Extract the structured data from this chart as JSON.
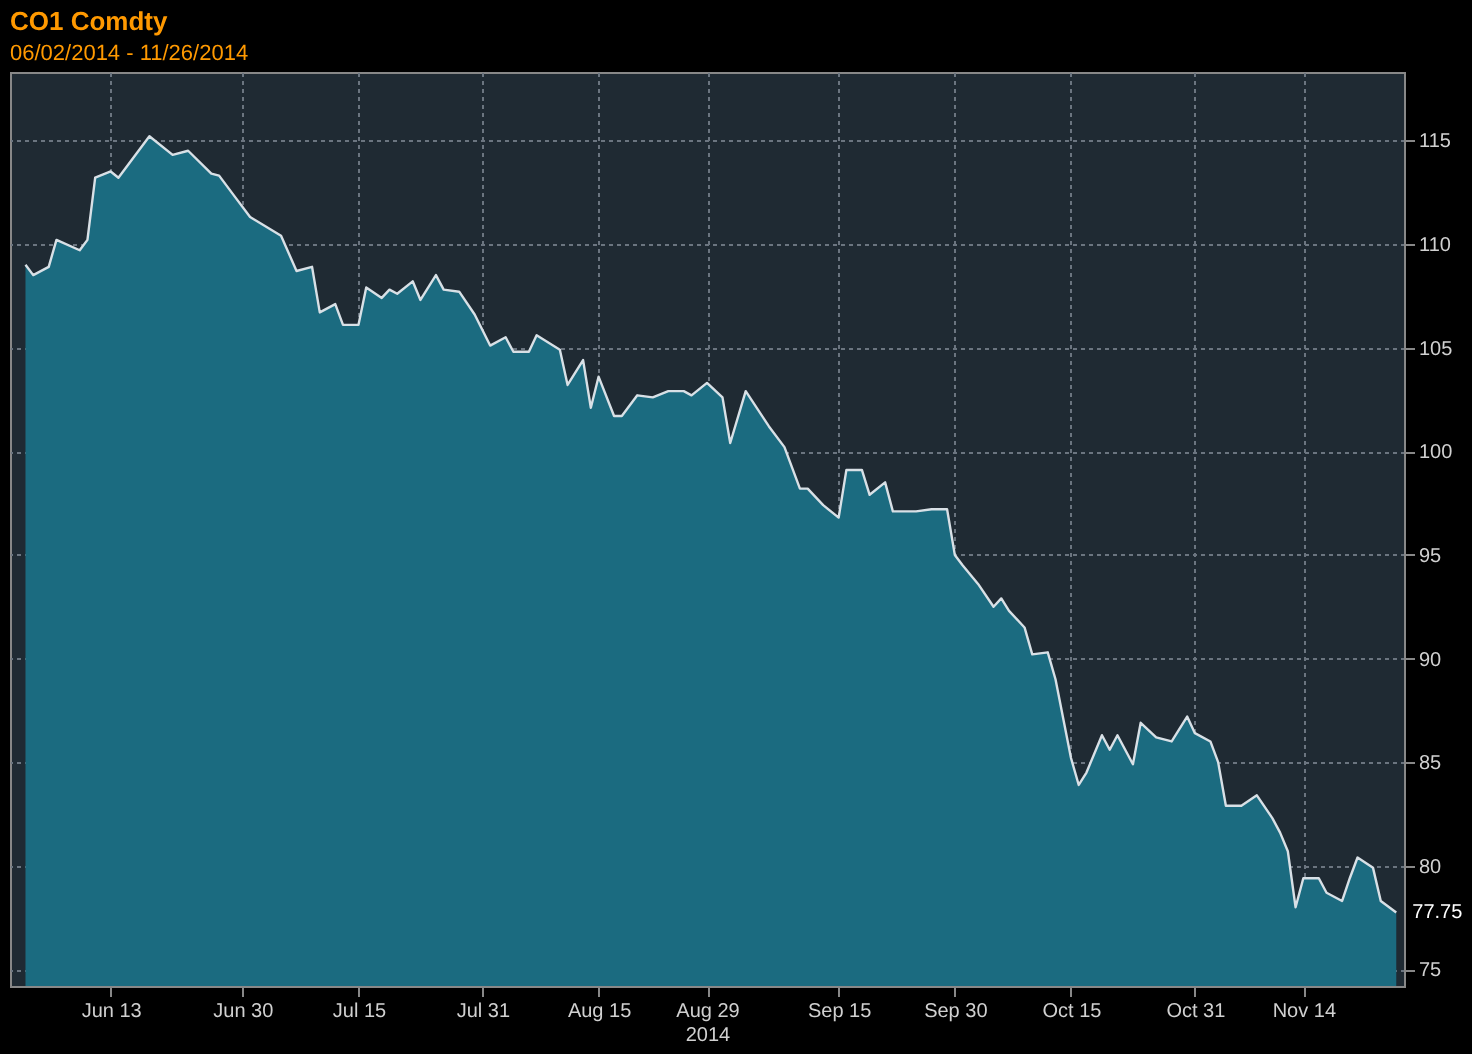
{
  "chart_data": {
    "type": "area",
    "title": "CO1 Comdty",
    "subtitle": "06/02/2014 - 11/26/2014",
    "x": [
      "2014-06-02",
      "2014-06-03",
      "2014-06-05",
      "2014-06-06",
      "2014-06-09",
      "2014-06-10",
      "2014-06-11",
      "2014-06-13",
      "2014-06-14",
      "2014-06-18",
      "2014-06-21",
      "2014-06-23",
      "2014-06-26",
      "2014-06-27",
      "2014-06-29",
      "2014-07-01",
      "2014-07-05",
      "2014-07-07",
      "2014-07-09",
      "2014-07-10",
      "2014-07-12",
      "2014-07-13",
      "2014-07-15",
      "2014-07-16",
      "2014-07-18",
      "2014-07-19",
      "2014-07-20",
      "2014-07-22",
      "2014-07-23",
      "2014-07-25",
      "2014-07-26",
      "2014-07-28",
      "2014-07-30",
      "2014-08-01",
      "2014-08-03",
      "2014-08-04",
      "2014-08-06",
      "2014-08-07",
      "2014-08-10",
      "2014-08-11",
      "2014-08-13",
      "2014-08-14",
      "2014-08-15",
      "2014-08-17",
      "2014-08-18",
      "2014-08-20",
      "2014-08-22",
      "2014-08-24",
      "2014-08-26",
      "2014-08-27",
      "2014-08-29",
      "2014-08-31",
      "2014-09-01",
      "2014-09-03",
      "2014-09-06",
      "2014-09-08",
      "2014-09-10",
      "2014-09-11",
      "2014-09-13",
      "2014-09-15",
      "2014-09-16",
      "2014-09-18",
      "2014-09-19",
      "2014-09-21",
      "2014-09-22",
      "2014-09-25",
      "2014-09-27",
      "2014-09-29",
      "2014-09-30",
      "2014-10-01",
      "2014-10-03",
      "2014-10-05",
      "2014-10-06",
      "2014-10-07",
      "2014-10-09",
      "2014-10-10",
      "2014-10-12",
      "2014-10-13",
      "2014-10-15",
      "2014-10-16",
      "2014-10-17",
      "2014-10-19",
      "2014-10-20",
      "2014-10-21",
      "2014-10-23",
      "2014-10-24",
      "2014-10-26",
      "2014-10-28",
      "2014-10-30",
      "2014-10-31",
      "2014-11-02",
      "2014-11-03",
      "2014-11-04",
      "2014-11-06",
      "2014-11-08",
      "2014-11-10",
      "2014-11-11",
      "2014-11-12",
      "2014-11-13",
      "2014-11-14",
      "2014-11-16",
      "2014-11-17",
      "2014-11-19",
      "2014-11-20",
      "2014-11-21",
      "2014-11-23",
      "2014-11-24",
      "2014-11-26"
    ],
    "series": [
      {
        "color": "#1b6b80",
        "values": [
          109.0,
          108.5,
          108.9,
          110.2,
          109.7,
          110.2,
          113.2,
          113.5,
          113.2,
          115.2,
          114.3,
          114.5,
          113.4,
          113.3,
          112.3,
          111.3,
          110.4,
          108.7,
          108.9,
          106.7,
          107.1,
          106.1,
          106.1,
          107.9,
          107.4,
          107.8,
          107.6,
          108.2,
          107.3,
          108.5,
          107.8,
          107.7,
          106.6,
          105.1,
          105.5,
          104.8,
          104.8,
          105.6,
          104.9,
          103.2,
          104.4,
          102.1,
          103.6,
          101.7,
          101.7,
          102.7,
          102.6,
          102.9,
          102.9,
          102.7,
          103.3,
          102.6,
          100.4,
          102.9,
          101.2,
          100.2,
          98.2,
          98.2,
          97.4,
          96.8,
          99.1,
          99.1,
          97.9,
          98.5,
          97.1,
          97.1,
          97.2,
          97.2,
          95.0,
          94.5,
          93.6,
          92.5,
          92.9,
          92.3,
          91.5,
          90.2,
          90.3,
          89.0,
          85.2,
          83.9,
          84.5,
          86.3,
          85.6,
          86.3,
          84.9,
          86.9,
          86.2,
          86.0,
          87.2,
          86.4,
          86.0,
          85.0,
          82.9,
          82.9,
          83.4,
          82.3,
          81.6,
          80.7,
          78.0,
          79.4,
          79.4,
          78.7,
          78.3,
          79.4,
          80.4,
          79.9,
          78.3,
          77.75
        ],
        "value_labels": [
          null,
          null,
          null,
          null,
          null,
          null,
          null,
          null,
          null,
          null,
          null,
          null,
          null,
          null,
          null,
          null,
          null,
          null,
          null,
          null,
          null,
          null,
          null,
          null,
          null,
          null,
          null,
          null,
          null,
          null,
          null,
          null,
          null,
          null,
          null,
          null,
          null,
          null,
          null,
          null,
          null,
          null,
          null,
          null,
          null,
          null,
          null,
          null,
          null,
          null,
          null,
          null,
          null,
          null,
          null,
          null,
          null,
          null,
          null,
          null,
          null,
          null,
          null,
          null,
          null,
          null,
          null,
          null,
          null,
          null,
          null,
          null,
          null,
          null,
          null,
          null,
          null,
          null,
          null,
          null,
          null,
          null,
          null,
          null,
          null,
          null,
          null,
          null,
          null,
          null,
          null,
          null,
          null,
          null,
          null,
          null,
          null,
          null,
          null,
          null,
          null,
          null,
          null,
          null,
          null,
          null,
          null,
          "77.75"
        ]
      }
    ],
    "xlim": [
      "2014-05-31",
      "2014-11-27"
    ],
    "xticks": [
      {
        "value": "2014-06-13",
        "label": "Jun 13"
      },
      {
        "value": "2014-06-30",
        "label": "Jun 30"
      },
      {
        "value": "2014-07-15",
        "label": "Jul 15"
      },
      {
        "value": "2014-07-31",
        "label": "Jul 31"
      },
      {
        "value": "2014-08-15",
        "label": "Aug 15"
      },
      {
        "value": "2014-08-29",
        "label": "Aug 29\n2014"
      },
      {
        "value": "2014-09-15",
        "label": "Sep 15"
      },
      {
        "value": "2014-09-30",
        "label": "Sep 30"
      },
      {
        "value": "2014-10-15",
        "label": "Oct 15"
      },
      {
        "value": "2014-10-31",
        "label": "Oct 31"
      },
      {
        "value": "2014-11-14",
        "label": "Nov 14"
      }
    ],
    "ylim": [
      74.2,
      118.3
    ],
    "yticks": [
      75,
      80,
      85,
      90,
      95,
      100,
      105,
      110,
      115
    ],
    "grid": true
  }
}
